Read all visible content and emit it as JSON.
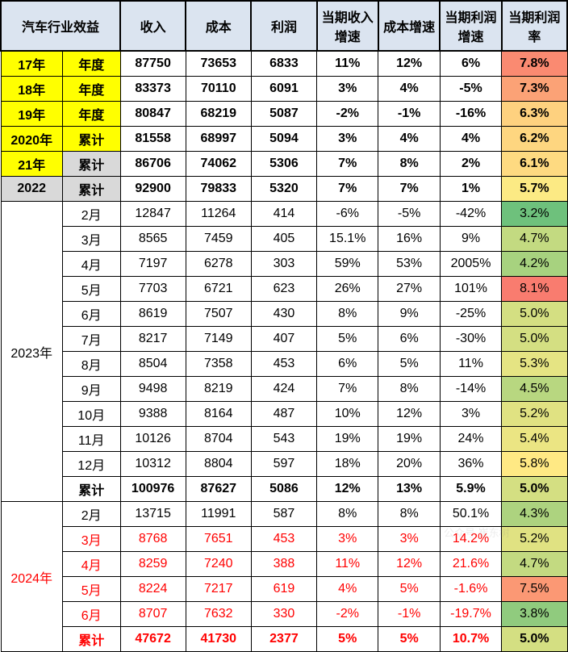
{
  "header": {
    "group_title": "汽车行业效益",
    "cols": [
      "收入",
      "成本",
      "利润",
      "当期收入增速",
      "成本增速",
      "当期利润增速",
      "当期利润率"
    ]
  },
  "profit_rate_scale": {
    "min": 3.0,
    "max": 8.5,
    "low_color": "#63be7b",
    "mid_color": "#ffeb84",
    "high_color": "#f8696b"
  },
  "rows": [
    {
      "year": "17年",
      "period": "年度",
      "year_bg": "yellow",
      "period_bg": "yellow",
      "bold": true,
      "vals": [
        "87750",
        "73653",
        "6833",
        "11%",
        "12%",
        "6%",
        "7.8%"
      ],
      "rate": 7.8
    },
    {
      "year": "18年",
      "period": "年度",
      "year_bg": "yellow",
      "period_bg": "yellow",
      "bold": true,
      "vals": [
        "83373",
        "70110",
        "6091",
        "3%",
        "4%",
        "-5%",
        "7.3%"
      ],
      "rate": 7.3
    },
    {
      "year": "19年",
      "period": "年度",
      "year_bg": "yellow",
      "period_bg": "yellow",
      "bold": true,
      "vals": [
        "80847",
        "68219",
        "5087",
        "-2%",
        "-1%",
        "-16%",
        "6.3%"
      ],
      "rate": 6.3
    },
    {
      "year": "2020年",
      "period": "累计",
      "year_bg": "yellow",
      "period_bg": "yellow",
      "bold": true,
      "vals": [
        "81558",
        "68997",
        "5094",
        "3%",
        "4%",
        "4%",
        "6.2%"
      ],
      "rate": 6.2
    },
    {
      "year": "21年",
      "period": "累计",
      "year_bg": "yellow",
      "period_bg": "grey",
      "bold": true,
      "vals": [
        "86706",
        "74062",
        "5306",
        "7%",
        "8%",
        "2%",
        "6.1%"
      ],
      "rate": 6.1
    },
    {
      "year": "2022",
      "period": "累计",
      "year_bg": "grey",
      "period_bg": "grey",
      "bold": true,
      "vals": [
        "92900",
        "79833",
        "5320",
        "7%",
        "7%",
        "1%",
        "5.7%"
      ],
      "rate": 5.7
    },
    {
      "group": "2023年",
      "group_span": 12,
      "period": "2月",
      "vals": [
        "12847",
        "11264",
        "414",
        "-6%",
        "-5%",
        "-42%",
        "3.2%"
      ],
      "rate": 3.2
    },
    {
      "period": "3月",
      "vals": [
        "8565",
        "7459",
        "405",
        "15.1%",
        "16%",
        "9%",
        "4.7%"
      ],
      "rate": 4.7
    },
    {
      "period": "4月",
      "vals": [
        "7197",
        "6278",
        "303",
        "59%",
        "53%",
        "2005%",
        "4.2%"
      ],
      "rate": 4.2
    },
    {
      "period": "5月",
      "vals": [
        "7703",
        "6721",
        "623",
        "26%",
        "27%",
        "101%",
        "8.1%"
      ],
      "rate": 8.1
    },
    {
      "period": "6月",
      "vals": [
        "8619",
        "7507",
        "430",
        "8%",
        "9%",
        "-25%",
        "5.0%"
      ],
      "rate": 5.0
    },
    {
      "period": "7月",
      "vals": [
        "8217",
        "7149",
        "407",
        "5%",
        "6%",
        "-30%",
        "5.0%"
      ],
      "rate": 5.0
    },
    {
      "period": "8月",
      "vals": [
        "8504",
        "7358",
        "453",
        "6%",
        "5%",
        "11%",
        "5.3%"
      ],
      "rate": 5.3
    },
    {
      "period": "9月",
      "vals": [
        "9498",
        "8219",
        "424",
        "7%",
        "8%",
        "-14%",
        "4.5%"
      ],
      "rate": 4.5
    },
    {
      "period": "10月",
      "vals": [
        "9388",
        "8164",
        "487",
        "10%",
        "12%",
        "3%",
        "5.2%"
      ],
      "rate": 5.2
    },
    {
      "period": "11月",
      "vals": [
        "10126",
        "8704",
        "543",
        "19%",
        "19%",
        "24%",
        "5.4%"
      ],
      "rate": 5.4
    },
    {
      "period": "12月",
      "vals": [
        "10312",
        "8804",
        "597",
        "18%",
        "20%",
        "36%",
        "5.8%"
      ],
      "rate": 5.8
    },
    {
      "period": "累计",
      "bold": true,
      "vals": [
        "100976",
        "87627",
        "5086",
        "12%",
        "13%",
        "5.9%",
        "5.0%"
      ],
      "rate": 5.0
    },
    {
      "group": "2024年",
      "group_span": 6,
      "group_red": true,
      "period": "2月",
      "vals": [
        "13715",
        "11991",
        "587",
        "8%",
        "8%",
        "50.1%",
        "4.3%"
      ],
      "rate": 4.3
    },
    {
      "period": "3月",
      "red": true,
      "vals": [
        "8768",
        "7651",
        "453",
        "3%",
        "3%",
        "14.2%",
        "5.2%"
      ],
      "rate": 5.2
    },
    {
      "period": "4月",
      "red": true,
      "vals": [
        "8259",
        "7240",
        "388",
        "11%",
        "12%",
        "21.6%",
        "4.7%"
      ],
      "rate": 4.7
    },
    {
      "period": "5月",
      "red": true,
      "vals": [
        "8224",
        "7217",
        "619",
        "4%",
        "5%",
        "-1.6%",
        "7.5%"
      ],
      "rate": 7.5
    },
    {
      "period": "6月",
      "red": true,
      "vals": [
        "8707",
        "7632",
        "330",
        "-2%",
        "-1%",
        "-19.7%",
        "3.8%"
      ],
      "rate": 3.8
    },
    {
      "period": "累计",
      "red": true,
      "bold": true,
      "vals": [
        "47672",
        "41730",
        "2377",
        "5%",
        "5%",
        "10.7%",
        "5.0%"
      ],
      "rate": 5.0
    }
  ],
  "watermark": "公众号 崔东树"
}
